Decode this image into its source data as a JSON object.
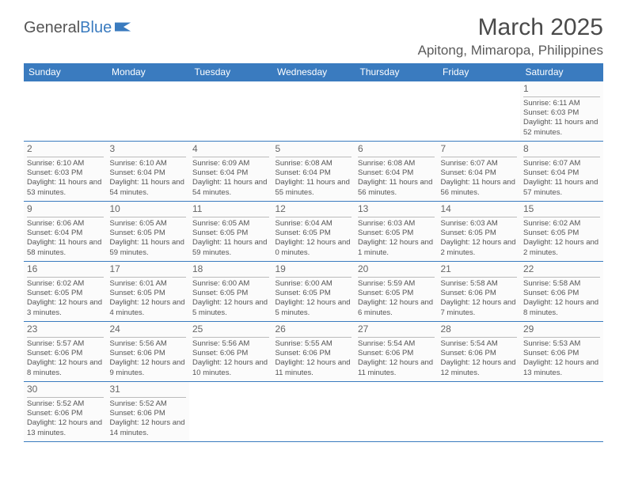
{
  "logo": {
    "text1": "General",
    "text2": "Blue",
    "flag_color": "#3a7bbf"
  },
  "title": "March 2025",
  "location": "Apitong, Mimaropa, Philippines",
  "header_bg": "#3a7bbf",
  "weekdays": [
    "Sunday",
    "Monday",
    "Tuesday",
    "Wednesday",
    "Thursday",
    "Friday",
    "Saturday"
  ],
  "weeks": [
    [
      null,
      null,
      null,
      null,
      null,
      null,
      {
        "n": "1",
        "sr": "Sunrise: 6:11 AM",
        "ss": "Sunset: 6:03 PM",
        "dl": "Daylight: 11 hours and 52 minutes."
      }
    ],
    [
      {
        "n": "2",
        "sr": "Sunrise: 6:10 AM",
        "ss": "Sunset: 6:03 PM",
        "dl": "Daylight: 11 hours and 53 minutes."
      },
      {
        "n": "3",
        "sr": "Sunrise: 6:10 AM",
        "ss": "Sunset: 6:04 PM",
        "dl": "Daylight: 11 hours and 54 minutes."
      },
      {
        "n": "4",
        "sr": "Sunrise: 6:09 AM",
        "ss": "Sunset: 6:04 PM",
        "dl": "Daylight: 11 hours and 54 minutes."
      },
      {
        "n": "5",
        "sr": "Sunrise: 6:08 AM",
        "ss": "Sunset: 6:04 PM",
        "dl": "Daylight: 11 hours and 55 minutes."
      },
      {
        "n": "6",
        "sr": "Sunrise: 6:08 AM",
        "ss": "Sunset: 6:04 PM",
        "dl": "Daylight: 11 hours and 56 minutes."
      },
      {
        "n": "7",
        "sr": "Sunrise: 6:07 AM",
        "ss": "Sunset: 6:04 PM",
        "dl": "Daylight: 11 hours and 56 minutes."
      },
      {
        "n": "8",
        "sr": "Sunrise: 6:07 AM",
        "ss": "Sunset: 6:04 PM",
        "dl": "Daylight: 11 hours and 57 minutes."
      }
    ],
    [
      {
        "n": "9",
        "sr": "Sunrise: 6:06 AM",
        "ss": "Sunset: 6:04 PM",
        "dl": "Daylight: 11 hours and 58 minutes."
      },
      {
        "n": "10",
        "sr": "Sunrise: 6:05 AM",
        "ss": "Sunset: 6:05 PM",
        "dl": "Daylight: 11 hours and 59 minutes."
      },
      {
        "n": "11",
        "sr": "Sunrise: 6:05 AM",
        "ss": "Sunset: 6:05 PM",
        "dl": "Daylight: 11 hours and 59 minutes."
      },
      {
        "n": "12",
        "sr": "Sunrise: 6:04 AM",
        "ss": "Sunset: 6:05 PM",
        "dl": "Daylight: 12 hours and 0 minutes."
      },
      {
        "n": "13",
        "sr": "Sunrise: 6:03 AM",
        "ss": "Sunset: 6:05 PM",
        "dl": "Daylight: 12 hours and 1 minute."
      },
      {
        "n": "14",
        "sr": "Sunrise: 6:03 AM",
        "ss": "Sunset: 6:05 PM",
        "dl": "Daylight: 12 hours and 2 minutes."
      },
      {
        "n": "15",
        "sr": "Sunrise: 6:02 AM",
        "ss": "Sunset: 6:05 PM",
        "dl": "Daylight: 12 hours and 2 minutes."
      }
    ],
    [
      {
        "n": "16",
        "sr": "Sunrise: 6:02 AM",
        "ss": "Sunset: 6:05 PM",
        "dl": "Daylight: 12 hours and 3 minutes."
      },
      {
        "n": "17",
        "sr": "Sunrise: 6:01 AM",
        "ss": "Sunset: 6:05 PM",
        "dl": "Daylight: 12 hours and 4 minutes."
      },
      {
        "n": "18",
        "sr": "Sunrise: 6:00 AM",
        "ss": "Sunset: 6:05 PM",
        "dl": "Daylight: 12 hours and 5 minutes."
      },
      {
        "n": "19",
        "sr": "Sunrise: 6:00 AM",
        "ss": "Sunset: 6:05 PM",
        "dl": "Daylight: 12 hours and 5 minutes."
      },
      {
        "n": "20",
        "sr": "Sunrise: 5:59 AM",
        "ss": "Sunset: 6:05 PM",
        "dl": "Daylight: 12 hours and 6 minutes."
      },
      {
        "n": "21",
        "sr": "Sunrise: 5:58 AM",
        "ss": "Sunset: 6:06 PM",
        "dl": "Daylight: 12 hours and 7 minutes."
      },
      {
        "n": "22",
        "sr": "Sunrise: 5:58 AM",
        "ss": "Sunset: 6:06 PM",
        "dl": "Daylight: 12 hours and 8 minutes."
      }
    ],
    [
      {
        "n": "23",
        "sr": "Sunrise: 5:57 AM",
        "ss": "Sunset: 6:06 PM",
        "dl": "Daylight: 12 hours and 8 minutes."
      },
      {
        "n": "24",
        "sr": "Sunrise: 5:56 AM",
        "ss": "Sunset: 6:06 PM",
        "dl": "Daylight: 12 hours and 9 minutes."
      },
      {
        "n": "25",
        "sr": "Sunrise: 5:56 AM",
        "ss": "Sunset: 6:06 PM",
        "dl": "Daylight: 12 hours and 10 minutes."
      },
      {
        "n": "26",
        "sr": "Sunrise: 5:55 AM",
        "ss": "Sunset: 6:06 PM",
        "dl": "Daylight: 12 hours and 11 minutes."
      },
      {
        "n": "27",
        "sr": "Sunrise: 5:54 AM",
        "ss": "Sunset: 6:06 PM",
        "dl": "Daylight: 12 hours and 11 minutes."
      },
      {
        "n": "28",
        "sr": "Sunrise: 5:54 AM",
        "ss": "Sunset: 6:06 PM",
        "dl": "Daylight: 12 hours and 12 minutes."
      },
      {
        "n": "29",
        "sr": "Sunrise: 5:53 AM",
        "ss": "Sunset: 6:06 PM",
        "dl": "Daylight: 12 hours and 13 minutes."
      }
    ],
    [
      {
        "n": "30",
        "sr": "Sunrise: 5:52 AM",
        "ss": "Sunset: 6:06 PM",
        "dl": "Daylight: 12 hours and 13 minutes."
      },
      {
        "n": "31",
        "sr": "Sunrise: 5:52 AM",
        "ss": "Sunset: 6:06 PM",
        "dl": "Daylight: 12 hours and 14 minutes."
      },
      null,
      null,
      null,
      null,
      null
    ]
  ]
}
